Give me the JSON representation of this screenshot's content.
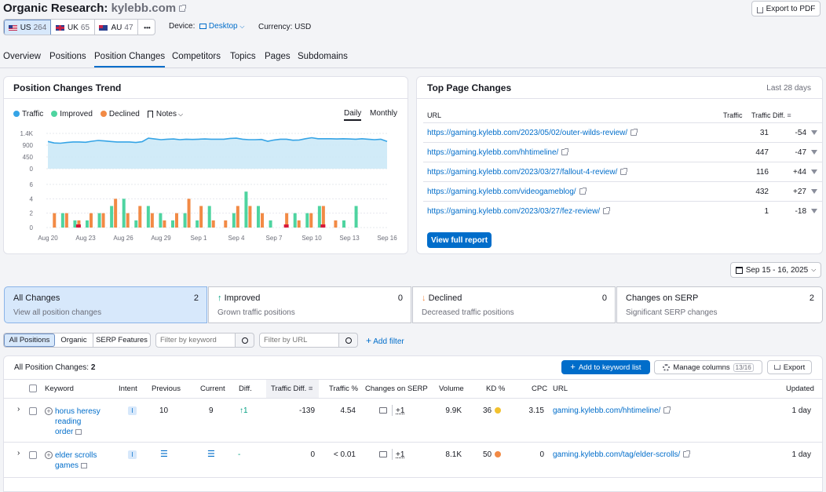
{
  "header": {
    "title_prefix": "Organic Research:",
    "domain": "kylebb.com",
    "export_pdf": "Export to PDF"
  },
  "db_chips": [
    {
      "flag": "US",
      "count": "264"
    },
    {
      "flag": "UK",
      "count": "65"
    },
    {
      "flag": "AU",
      "count": "47"
    },
    {
      "more": "•••"
    }
  ],
  "device": {
    "label": "Device:",
    "value": "Desktop"
  },
  "currency": {
    "label": "Currency:",
    "value": "USD"
  },
  "tabs": [
    "Overview",
    "Positions",
    "Position Changes",
    "Competitors",
    "Topics",
    "Pages",
    "Subdomains"
  ],
  "trend": {
    "title": "Position Changes Trend",
    "legend": [
      "Traffic",
      "Improved",
      "Declined",
      "Notes"
    ],
    "toggle": [
      "Daily",
      "Monthly"
    ],
    "colors": {
      "traffic": "#35a4e6",
      "improved": "#4ed4a0",
      "declined": "#f28a45",
      "declined_red": "#d8193b",
      "area": "#c9e8f7"
    }
  },
  "chart_data": {
    "type": "bar",
    "traffic_line": {
      "ylim": [
        0,
        1400
      ],
      "yticks": [
        "1.4K",
        "900",
        "450",
        "0"
      ],
      "values": [
        1080,
        1020,
        1010,
        1040,
        1060,
        1060,
        1050,
        1090,
        1120,
        1100,
        1080,
        1060,
        1060,
        1060,
        1040,
        1070,
        1210,
        1180,
        1150,
        1170,
        1180,
        1150,
        1170,
        1160,
        1170,
        1180,
        1170,
        1170,
        1170,
        1200,
        1210,
        1170,
        1150,
        1150,
        1160,
        1090,
        1140,
        1170,
        1170,
        1130,
        1140,
        1190,
        1230,
        1190,
        1190,
        1190,
        1180,
        1190,
        1180,
        1170,
        1190,
        1170,
        1150,
        1170,
        1080
      ]
    },
    "bars": {
      "ylim": [
        0,
        6
      ],
      "yticks": [
        "6",
        "4",
        "2",
        "0"
      ],
      "x_labels": [
        "Aug 20",
        "Aug 23",
        "Aug 26",
        "Aug 29",
        "Sep 1",
        "Sep 4",
        "Sep 7",
        "Sep 10",
        "Sep 13",
        "Sep 16"
      ],
      "improved": [
        0,
        2,
        1,
        1,
        2,
        3,
        4,
        1,
        3,
        2,
        1,
        2,
        1,
        3,
        0,
        2,
        5,
        3,
        1,
        0,
        2,
        2,
        3,
        0,
        1,
        3,
        0,
        0
      ],
      "declined": [
        2,
        2,
        1,
        2,
        2,
        4,
        2,
        3,
        2,
        1,
        2,
        4,
        3,
        1,
        1,
        3,
        3,
        2,
        0,
        2,
        1,
        2,
        3,
        1,
        0,
        0,
        0,
        0
      ],
      "declined_red": [
        0,
        0,
        1,
        0,
        0,
        0,
        0,
        0,
        0,
        0,
        0,
        0,
        0,
        0,
        0,
        0,
        0,
        0,
        0,
        1,
        0,
        0,
        1,
        0,
        0,
        0,
        0,
        0
      ]
    }
  },
  "top_pages": {
    "title": "Top Page Changes",
    "period": "Last 28 days",
    "columns": [
      "URL",
      "Traffic",
      "Traffic Diff."
    ],
    "rows": [
      {
        "url": "https://gaming.kylebb.com/2023/05/02/outer-wilds-review/",
        "traffic": "31",
        "diff": "-54"
      },
      {
        "url": "https://gaming.kylebb.com/hhtimeline/",
        "traffic": "447",
        "diff": "-47"
      },
      {
        "url": "https://gaming.kylebb.com/2023/03/27/fallout-4-review/",
        "traffic": "116",
        "diff": "+44"
      },
      {
        "url": "https://gaming.kylebb.com/videogameblog/",
        "traffic": "432",
        "diff": "+27"
      },
      {
        "url": "https://gaming.kylebb.com/2023/03/27/fez-review/",
        "traffic": "1",
        "diff": "-18"
      }
    ],
    "view_full": "View full report"
  },
  "date_range": "Sep 15 - 16, 2025",
  "summary_cards": [
    {
      "title": "All Changes",
      "count": "2",
      "sub": "View all position changes"
    },
    {
      "title": "Improved",
      "count": "0",
      "sub": "Grown traffic positions"
    },
    {
      "title": "Declined",
      "count": "0",
      "sub": "Decreased traffic positions"
    },
    {
      "title": "Changes on SERP",
      "count": "2",
      "sub": "Significant SERP changes"
    }
  ],
  "filters": {
    "chips": [
      "All Positions",
      "Organic",
      "SERP Features"
    ],
    "keyword_placeholder": "Filter by keyword",
    "url_placeholder": "Filter by URL",
    "add_filter": "Add filter"
  },
  "table": {
    "title": "All Position Changes:",
    "count": "2",
    "add_to_list": "Add to keyword list",
    "manage_columns": "Manage columns",
    "manage_count": "13/16",
    "export": "Export",
    "columns": [
      "Keyword",
      "Intent",
      "Previous",
      "Current",
      "Diff.",
      "Traffic Diff.",
      "Traffic %",
      "Changes on SERP",
      "Volume",
      "KD %",
      "CPC",
      "URL",
      "Updated"
    ],
    "rows": [
      {
        "kw1": "horus heresy",
        "kw2": "reading",
        "kw3": "order",
        "intent": "I",
        "previous": "10",
        "current": "9",
        "diff": "↑1",
        "traffic_diff": "-139",
        "traffic_pct": "4.54",
        "serp": "+1",
        "volume": "9.9K",
        "kd": "36",
        "kd_color": "#f2c12e",
        "cpc": "3.15",
        "url": "gaming.kylebb.com/hhtimeline/",
        "updated": "1 day"
      },
      {
        "kw1": "elder scrolls",
        "kw2": "games",
        "intent": "I",
        "previous": "",
        "current": "",
        "diff": "-",
        "traffic_diff": "0",
        "traffic_pct": "< 0.01",
        "serp": "+1",
        "volume": "8.1K",
        "kd": "50",
        "kd_color": "#f28a45",
        "cpc": "0",
        "url": "gaming.kylebb.com/tag/elder-scrolls/",
        "updated": "1 day"
      }
    ]
  }
}
